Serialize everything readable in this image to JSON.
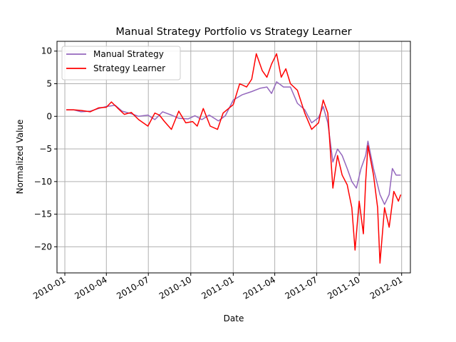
{
  "chart_data": {
    "type": "line",
    "title": "Manual Strategy Portfolio vs Strategy Learner",
    "xlabel": "Date",
    "ylabel": "Normalized Value",
    "xlim": [
      "2009-12-15",
      "2012-01-20"
    ],
    "ylim": [
      -24,
      11.5
    ],
    "grid": true,
    "legend_position": "top-left",
    "x_ticks": [
      "2010-01",
      "2010-04",
      "2010-07",
      "2010-10",
      "2011-01",
      "2011-04",
      "2011-07",
      "2011-10",
      "2012-01"
    ],
    "y_ticks": [
      10,
      5,
      0,
      -5,
      -10,
      -15,
      -20
    ],
    "y_tick_labels": [
      "10",
      "5",
      "0",
      "−5",
      "−10",
      "−15",
      "−20"
    ],
    "series": [
      {
        "name": "Manual Strategy",
        "color": "#9467bd",
        "points": [
          [
            "2010-01-04",
            1.0
          ],
          [
            "2010-01-20",
            1.0
          ],
          [
            "2010-02-05",
            0.7
          ],
          [
            "2010-02-25",
            0.8
          ],
          [
            "2010-03-15",
            1.2
          ],
          [
            "2010-04-01",
            1.5
          ],
          [
            "2010-04-20",
            1.7
          ],
          [
            "2010-05-05",
            0.8
          ],
          [
            "2010-05-25",
            0.4
          ],
          [
            "2010-06-10",
            0.0
          ],
          [
            "2010-06-30",
            0.2
          ],
          [
            "2010-07-15",
            -0.5
          ],
          [
            "2010-08-01",
            0.7
          ],
          [
            "2010-08-20",
            0.2
          ],
          [
            "2010-09-05",
            -0.3
          ],
          [
            "2010-09-25",
            -0.4
          ],
          [
            "2010-10-10",
            0.1
          ],
          [
            "2010-10-25",
            -0.5
          ],
          [
            "2010-11-10",
            0.2
          ],
          [
            "2010-11-30",
            -0.7
          ],
          [
            "2010-12-15",
            0.1
          ],
          [
            "2011-01-01",
            2.5
          ],
          [
            "2011-01-20",
            3.3
          ],
          [
            "2011-02-10",
            3.8
          ],
          [
            "2011-02-28",
            4.3
          ],
          [
            "2011-03-15",
            4.5
          ],
          [
            "2011-03-25",
            3.5
          ],
          [
            "2011-04-05",
            5.3
          ],
          [
            "2011-04-20",
            4.5
          ],
          [
            "2011-05-05",
            4.5
          ],
          [
            "2011-05-20",
            2.0
          ],
          [
            "2011-06-05",
            1.0
          ],
          [
            "2011-06-20",
            -1.0
          ],
          [
            "2011-07-05",
            -0.2
          ],
          [
            "2011-07-15",
            1.5
          ],
          [
            "2011-07-25",
            -1.0
          ],
          [
            "2011-08-05",
            -7.0
          ],
          [
            "2011-08-15",
            -5.0
          ],
          [
            "2011-08-25",
            -6.0
          ],
          [
            "2011-09-05",
            -8.0
          ],
          [
            "2011-09-15",
            -10.0
          ],
          [
            "2011-09-25",
            -11.0
          ],
          [
            "2011-10-05",
            -8.0
          ],
          [
            "2011-10-15",
            -6.0
          ],
          [
            "2011-10-20",
            -3.8
          ],
          [
            "2011-11-01",
            -8.0
          ],
          [
            "2011-11-15",
            -12.0
          ],
          [
            "2011-11-25",
            -13.5
          ],
          [
            "2011-12-05",
            -12.0
          ],
          [
            "2011-12-12",
            -8.0
          ],
          [
            "2011-12-20",
            -9.0
          ],
          [
            "2011-12-30",
            -9.0
          ]
        ]
      },
      {
        "name": "Strategy Learner",
        "color": "#ff0000",
        "points": [
          [
            "2010-01-04",
            1.0
          ],
          [
            "2010-01-20",
            1.0
          ],
          [
            "2010-02-05",
            0.9
          ],
          [
            "2010-02-25",
            0.7
          ],
          [
            "2010-03-15",
            1.3
          ],
          [
            "2010-04-01",
            1.4
          ],
          [
            "2010-04-12",
            2.2
          ],
          [
            "2010-04-25",
            1.3
          ],
          [
            "2010-05-10",
            0.3
          ],
          [
            "2010-05-25",
            0.6
          ],
          [
            "2010-06-10",
            -0.5
          ],
          [
            "2010-06-30",
            -1.5
          ],
          [
            "2010-07-15",
            0.5
          ],
          [
            "2010-07-25",
            0.2
          ],
          [
            "2010-08-05",
            -0.8
          ],
          [
            "2010-08-20",
            -2.0
          ],
          [
            "2010-09-05",
            0.8
          ],
          [
            "2010-09-20",
            -1.0
          ],
          [
            "2010-10-05",
            -0.8
          ],
          [
            "2010-10-15",
            -1.5
          ],
          [
            "2010-10-28",
            1.2
          ],
          [
            "2010-11-12",
            -1.5
          ],
          [
            "2010-11-28",
            -2.0
          ],
          [
            "2010-12-10",
            0.5
          ],
          [
            "2011-01-01",
            1.8
          ],
          [
            "2011-01-15",
            5.0
          ],
          [
            "2011-01-30",
            4.5
          ],
          [
            "2011-02-10",
            5.7
          ],
          [
            "2011-02-20",
            9.6
          ],
          [
            "2011-03-05",
            7.0
          ],
          [
            "2011-03-15",
            6.0
          ],
          [
            "2011-03-25",
            8.0
          ],
          [
            "2011-04-05",
            9.6
          ],
          [
            "2011-04-15",
            6.0
          ],
          [
            "2011-04-25",
            7.3
          ],
          [
            "2011-05-05",
            5.0
          ],
          [
            "2011-05-20",
            4.0
          ],
          [
            "2011-06-05",
            0.5
          ],
          [
            "2011-06-20",
            -2.0
          ],
          [
            "2011-07-05",
            -1.0
          ],
          [
            "2011-07-15",
            2.5
          ],
          [
            "2011-07-25",
            0.5
          ],
          [
            "2011-08-05",
            -11.0
          ],
          [
            "2011-08-15",
            -6.0
          ],
          [
            "2011-08-25",
            -9.0
          ],
          [
            "2011-09-05",
            -10.5
          ],
          [
            "2011-09-15",
            -14.0
          ],
          [
            "2011-09-22",
            -20.5
          ],
          [
            "2011-10-01",
            -13.0
          ],
          [
            "2011-10-10",
            -18.0
          ],
          [
            "2011-10-15",
            -10.0
          ],
          [
            "2011-10-20",
            -4.5
          ],
          [
            "2011-11-01",
            -9.0
          ],
          [
            "2011-11-10",
            -14.0
          ],
          [
            "2011-11-15",
            -22.5
          ],
          [
            "2011-11-25",
            -14.0
          ],
          [
            "2011-12-05",
            -17.0
          ],
          [
            "2011-12-15",
            -11.5
          ],
          [
            "2011-12-25",
            -13.0
          ],
          [
            "2011-12-30",
            -12.0
          ]
        ]
      }
    ]
  }
}
